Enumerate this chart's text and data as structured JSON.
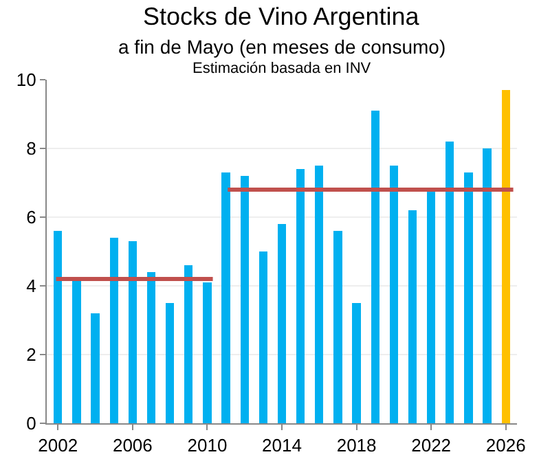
{
  "chart_data": {
    "type": "bar",
    "title": "Stocks de Vino Argentina",
    "subtitle": "a fin de Mayo (en meses de consumo)",
    "annotations": [
      "Estimación basada en INV"
    ],
    "x": [
      2002,
      2003,
      2004,
      2005,
      2006,
      2007,
      2008,
      2009,
      2010,
      2011,
      2012,
      2013,
      2014,
      2015,
      2016,
      2017,
      2018,
      2019,
      2020,
      2021,
      2022,
      2023,
      2024,
      2025,
      2026
    ],
    "series": [
      {
        "colors": [
          "#00b0f0",
          "#00b0f0",
          "#00b0f0",
          "#00b0f0",
          "#00b0f0",
          "#00b0f0",
          "#00b0f0",
          "#00b0f0",
          "#00b0f0",
          "#00b0f0",
          "#00b0f0",
          "#00b0f0",
          "#00b0f0",
          "#00b0f0",
          "#00b0f0",
          "#00b0f0",
          "#00b0f0",
          "#00b0f0",
          "#00b0f0",
          "#00b0f0",
          "#00b0f0",
          "#00b0f0",
          "#00b0f0",
          "#00b0f0",
          "#ffc000"
        ],
        "values": [
          5.6,
          4.2,
          3.2,
          5.4,
          5.3,
          4.4,
          3.5,
          4.6,
          4.1,
          7.3,
          7.2,
          5.0,
          5.8,
          7.4,
          7.5,
          5.6,
          3.5,
          9.1,
          7.5,
          6.2,
          6.8,
          8.2,
          7.3,
          8.0,
          9.7
        ]
      },
      {
        "type": "line",
        "color": "#c0504d",
        "x": [
          2001.9,
          2010.3
        ],
        "values": [
          4.2,
          4.2
        ]
      },
      {
        "type": "line",
        "color": "#c0504d",
        "x": [
          2011.1,
          2026.4
        ],
        "values": [
          6.8,
          6.8
        ]
      }
    ],
    "xlim": [
      2001.4,
      2026.6
    ],
    "xticks": [
      2002,
      2006,
      2010,
      2014,
      2018,
      2022,
      2026
    ],
    "ylim": [
      0,
      10
    ],
    "yticks": [
      0,
      2,
      4,
      6,
      8,
      10
    ],
    "grid": "y",
    "legend": false
  }
}
